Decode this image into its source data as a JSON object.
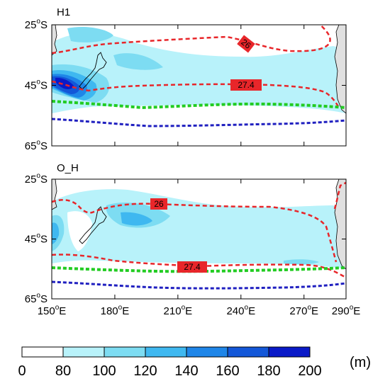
{
  "chart_data": {
    "type": "heatmap",
    "panels": [
      {
        "title": "H1",
        "contour_labels": [
          "26",
          "27.4"
        ]
      },
      {
        "title": "O_H",
        "contour_labels": [
          "26",
          "27.4"
        ]
      }
    ],
    "x_ticks": [
      {
        "value": 150,
        "label": "150",
        "hemi": "E"
      },
      {
        "value": 180,
        "label": "180",
        "hemi": "E"
      },
      {
        "value": 210,
        "label": "210",
        "hemi": "E"
      },
      {
        "value": 240,
        "label": "240",
        "hemi": "E"
      },
      {
        "value": 270,
        "label": "270",
        "hemi": "E"
      },
      {
        "value": 290,
        "label": "290",
        "hemi": "E"
      }
    ],
    "y_ticks": [
      {
        "value": -25,
        "label": "25",
        "hemi": "S"
      },
      {
        "value": -45,
        "label": "45",
        "hemi": "S"
      },
      {
        "value": -65,
        "label": "65",
        "hemi": "S"
      }
    ],
    "xlim": [
      150,
      290
    ],
    "ylim": [
      -65,
      -25
    ],
    "colorbar": {
      "levels": [
        "0",
        "80",
        "100",
        "120",
        "140",
        "160",
        "180",
        "200"
      ],
      "colors": [
        "#ffffff",
        "#b8f2fa",
        "#7ddcf2",
        "#3fb8f0",
        "#1f86e8",
        "#1357d8",
        "#0a1ac8"
      ],
      "unit": "(m)"
    },
    "line_colors": {
      "contour": "#e8262a",
      "green_front": "#22cc22",
      "blue_front": "#2020c0"
    }
  }
}
